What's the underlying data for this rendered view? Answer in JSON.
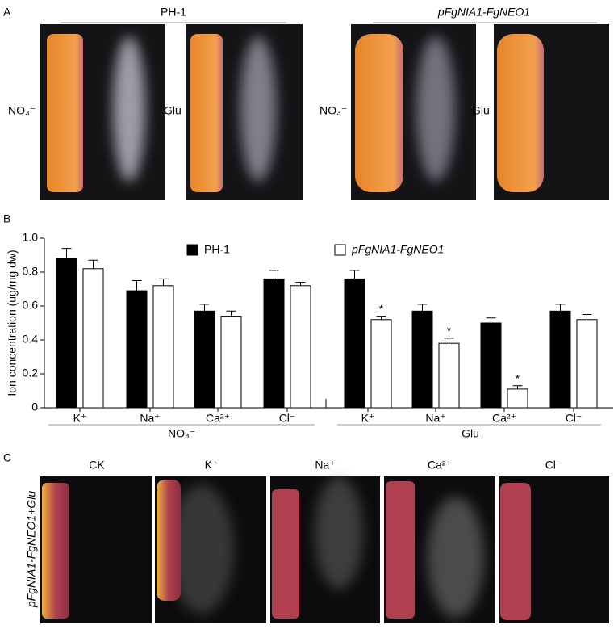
{
  "panel_a": {
    "letter": "A",
    "group_titles": [
      "PH-1",
      "pFgNIA1-FgNEO1"
    ],
    "photo_labels": [
      "NO₃⁻",
      "Glu",
      "NO₃⁻",
      "Glu"
    ]
  },
  "chart_data": {
    "type": "bar",
    "letter": "B",
    "y_label": "Ion  concentration (ug/mg dw)",
    "categories": [
      "K⁺",
      "Na⁺",
      "Ca²⁺",
      "Cl⁻",
      "K⁺",
      "Na⁺",
      "Ca²⁺",
      "Cl⁻"
    ],
    "groups": [
      "NO₃⁻",
      "Glu"
    ],
    "series": [
      {
        "name": "PH-1",
        "color": "#000000",
        "values": [
          0.88,
          0.69,
          0.57,
          0.76,
          0.76,
          0.57,
          0.5,
          0.57
        ],
        "errors": [
          0.06,
          0.06,
          0.04,
          0.05,
          0.05,
          0.04,
          0.03,
          0.04
        ]
      },
      {
        "name": "pFgNIA1-FgNEO1",
        "color": "#ffffff",
        "values": [
          0.82,
          0.72,
          0.54,
          0.72,
          0.52,
          0.38,
          0.11,
          0.52
        ],
        "errors": [
          0.05,
          0.04,
          0.03,
          0.02,
          0.02,
          0.03,
          0.02,
          0.03
        ],
        "significance": [
          null,
          null,
          null,
          null,
          "*",
          "*",
          "*",
          null
        ]
      }
    ],
    "ylim": [
      0,
      1.0
    ],
    "yticks": [
      0,
      0.2,
      0.4,
      0.6,
      0.8,
      {
        "value": 1.0,
        "label": "1.0"
      }
    ]
  },
  "panel_c": {
    "letter": "C",
    "row_label": "pFgNIA1-FgNEO1+Glu",
    "photo_labels": [
      "CK",
      "K⁺",
      "Na⁺",
      "Ca²⁺",
      "Cl⁻"
    ]
  }
}
